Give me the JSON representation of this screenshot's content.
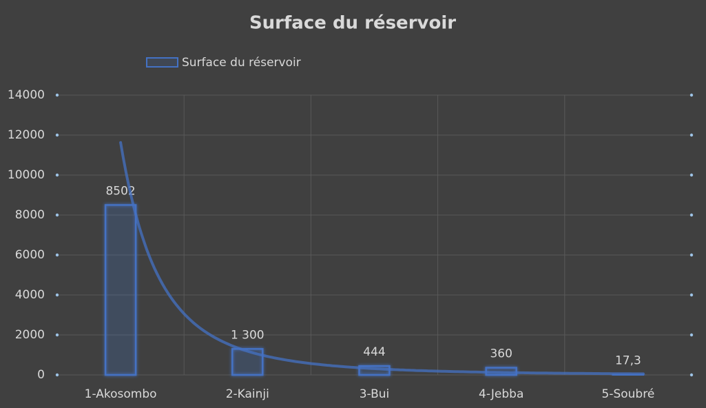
{
  "chart_data": {
    "type": "bar",
    "title": "Surface du réservoir",
    "categories": [
      "1-Akosombo",
      "2-Kainji",
      "3-Bui",
      "4-Jebba",
      "5-Soubré"
    ],
    "series": [
      {
        "name": "Surface du réservoir",
        "color": "#4472c4",
        "values": [
          8502,
          1300,
          444,
          360,
          17.3
        ],
        "value_labels": [
          "8502",
          "1 300",
          "444",
          "360",
          "17,3"
        ]
      }
    ],
    "ylim": [
      0,
      14000
    ],
    "yticks": [
      0,
      2000,
      4000,
      6000,
      8000,
      10000,
      12000,
      14000
    ],
    "grid": true,
    "legend": "top",
    "trendline": "power"
  }
}
